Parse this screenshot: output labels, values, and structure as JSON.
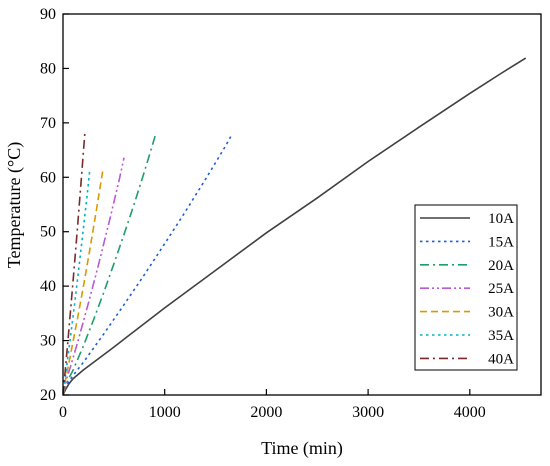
{
  "chart_data": {
    "type": "line",
    "title": "",
    "xlabel": "Time (min)",
    "ylabel": "Temperature (°C)",
    "xlim": [
      0,
      4700
    ],
    "ylim": [
      20,
      90
    ],
    "xticks": [
      0,
      1000,
      2000,
      3000,
      4000
    ],
    "yticks": [
      20,
      30,
      40,
      50,
      60,
      70,
      80,
      90
    ],
    "grid": false,
    "legend": {
      "position": "bottom-right"
    },
    "series": [
      {
        "name": "10A",
        "color": "#404040",
        "dash": "solid",
        "x": [
          0,
          25,
          60,
          100,
          200,
          300,
          500,
          700,
          1000,
          1500,
          2000,
          2500,
          3000,
          3500,
          4000,
          4300,
          4550
        ],
        "y": [
          20.0,
          21.0,
          22.1,
          23.0,
          24.6,
          26.0,
          28.8,
          31.7,
          36.0,
          42.9,
          49.8,
          56.2,
          62.9,
          69.2,
          75.4,
          79.0,
          81.9
        ]
      },
      {
        "name": "15A",
        "color": "#1f5fd6",
        "dash": "dot",
        "x": [
          0,
          40,
          100,
          200,
          400,
          600,
          800,
          1000,
          1200,
          1400,
          1600,
          1650
        ],
        "y": [
          20.0,
          22.0,
          23.6,
          26.0,
          31.2,
          36.6,
          42.1,
          47.8,
          53.6,
          59.6,
          65.8,
          67.5
        ]
      },
      {
        "name": "20A",
        "color": "#1e9e6a",
        "dash": "dashdot",
        "x": [
          0,
          20,
          50,
          100,
          200,
          300,
          400,
          500,
          600,
          700,
          800,
          900,
          910
        ],
        "y": [
          20.0,
          21.2,
          22.8,
          24.6,
          29.0,
          33.8,
          38.8,
          44.1,
          49.5,
          55.1,
          61.0,
          67.2,
          67.9
        ]
      },
      {
        "name": "25A",
        "color": "#b65ad6",
        "dash": "dashdotdot",
        "x": [
          0,
          15,
          40,
          80,
          150,
          250,
          350,
          450,
          550,
          600
        ],
        "y": [
          20.0,
          21.4,
          23.2,
          25.6,
          30.1,
          36.9,
          44.0,
          51.5,
          59.3,
          63.6
        ]
      },
      {
        "name": "30A",
        "color": "#d99a00",
        "dash": "dash",
        "x": [
          0,
          15,
          40,
          80,
          140,
          200,
          260,
          320,
          390
        ],
        "y": [
          20.0,
          21.8,
          24.2,
          28.0,
          33.8,
          39.9,
          46.3,
          53.0,
          61.1
        ]
      },
      {
        "name": "35A",
        "color": "#00b6c9",
        "dash": "dot",
        "x": [
          0,
          10,
          30,
          60,
          100,
          150,
          200,
          240,
          265
        ],
        "y": [
          20.0,
          21.6,
          24.4,
          28.7,
          34.6,
          42.4,
          50.5,
          57.2,
          61.6
        ]
      },
      {
        "name": "40A",
        "color": "#7a2a2a",
        "dash": "dashdot",
        "x": [
          0,
          10,
          25,
          50,
          80,
          110,
          140,
          170,
          195,
          215
        ],
        "y": [
          20.0,
          22.0,
          25.1,
          30.3,
          36.8,
          43.4,
          50.2,
          57.3,
          63.3,
          68.2
        ]
      }
    ]
  }
}
